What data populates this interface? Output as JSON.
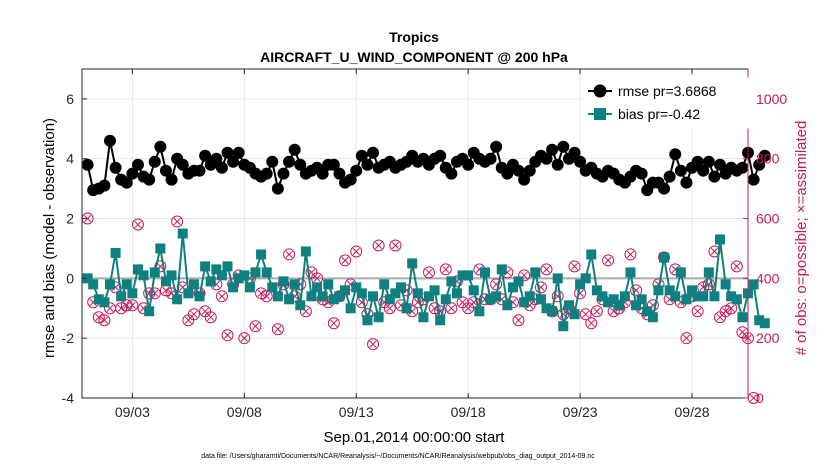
{
  "chart_data": {
    "type": "line",
    "title": "Tropics",
    "subtitle": "AIRCRAFT_U_WIND_COMPONENT @ 200 hPa",
    "xlabel": "Sep.01,2014 00:00:00 start",
    "ylabel_left": "rmse and bias (model - observation)",
    "ylabel_right": "# of obs: o=possible; ×=assimilated",
    "footnote": "data file: /Users/gharamti/Documents/NCAR/Reanalysis/~/Documents/NCAR/Reanalysis/webpub/obs_diag_output_2014-09.nc",
    "xlim": [
      0.75,
      30.5
    ],
    "ylim_left": [
      -4,
      7
    ],
    "ylim_right": [
      0,
      1100
    ],
    "x_ticks": [
      3,
      8,
      13,
      18,
      23,
      28
    ],
    "x_tick_labels": [
      "09/03",
      "09/08",
      "09/13",
      "09/18",
      "09/23",
      "09/28"
    ],
    "y_ticks_left": [
      -4,
      -2,
      0,
      2,
      4,
      6
    ],
    "y_tick_labels_left": [
      "-4",
      "-2",
      "0",
      "2",
      "4",
      "6"
    ],
    "y_ticks_right": [
      0,
      200,
      400,
      600,
      800,
      1000
    ],
    "y_tick_labels_right": [
      "0",
      "200",
      "400",
      "600",
      "800",
      "1000"
    ],
    "grid": true,
    "legend_position": "top-right",
    "zero_line": 0,
    "colors": {
      "rmse": "#000000",
      "bias": "#0f8080",
      "obs": "#c8185a",
      "grid": "#e6e6e6",
      "zero": "#aaaaaa"
    },
    "x_start": 1,
    "x_step": 0.25,
    "series": [
      {
        "name": "rmse pr=3.6868",
        "values": [
          3.8,
          2.95,
          3.0,
          3.1,
          4.6,
          3.7,
          3.3,
          3.2,
          3.5,
          3.8,
          3.4,
          3.3,
          3.9,
          4.4,
          3.6,
          3.3,
          4.0,
          3.8,
          3.5,
          3.6,
          3.6,
          4.1,
          3.8,
          4.0,
          3.7,
          4.2,
          3.9,
          4.2,
          3.8,
          3.7,
          3.5,
          3.4,
          3.5,
          3.9,
          3.0,
          3.5,
          3.9,
          4.3,
          3.8,
          3.5,
          3.6,
          3.7,
          3.5,
          3.8,
          3.8,
          3.5,
          3.2,
          3.3,
          3.6,
          4.1,
          3.8,
          4.2,
          3.7,
          3.8,
          3.9,
          3.7,
          3.8,
          3.9,
          4.1,
          3.9,
          4.0,
          3.8,
          4.0,
          4.1,
          3.7,
          3.5,
          3.9,
          4.0,
          3.8,
          4.2,
          4.0,
          3.9,
          4.0,
          4.4,
          3.7,
          3.5,
          3.8,
          3.6,
          3.3,
          3.6,
          3.9,
          4.1,
          4.0,
          4.3,
          3.8,
          4.4,
          4.0,
          4.2,
          3.9,
          3.6,
          3.7,
          3.5,
          3.4,
          3.6,
          3.5,
          3.3,
          3.2,
          3.4,
          3.6,
          3.5,
          2.95,
          3.2,
          3.2,
          3.0,
          3.4,
          4.15,
          3.6,
          3.2,
          3.7,
          3.9,
          3.6,
          3.9,
          3.4,
          3.8,
          3.5,
          3.7,
          3.6,
          3.7,
          4.2,
          3.3,
          3.8,
          4.1
        ]
      },
      {
        "name": "bias pr=-0.42",
        "values": [
          0.0,
          -0.2,
          -0.7,
          -0.8,
          -0.2,
          0.85,
          -0.6,
          -0.2,
          -0.5,
          0.3,
          0.1,
          -1.1,
          0.2,
          1.0,
          -0.1,
          0.1,
          -0.7,
          1.5,
          -0.5,
          -0.2,
          -0.6,
          0.4,
          -0.1,
          0.3,
          0.1,
          0.4,
          -0.3,
          0.0,
          0.1,
          -0.3,
          0.2,
          0.8,
          0.2,
          -0.3,
          -0.6,
          -0.1,
          -0.7,
          -0.2,
          -0.9,
          0.9,
          -0.6,
          -0.3,
          -0.6,
          -0.2,
          -0.7,
          -0.6,
          -0.4,
          -1.0,
          -0.3,
          -0.5,
          -1.4,
          -0.6,
          -1.3,
          -0.2,
          -0.7,
          -0.5,
          -0.3,
          -1.0,
          0.5,
          -0.5,
          -1.3,
          -0.6,
          -0.4,
          -1.4,
          -0.7,
          -0.1,
          -0.5,
          0.1,
          0.1,
          -0.4,
          -1.1,
          0.2,
          -0.7,
          -0.6,
          0.3,
          -0.9,
          -0.3,
          -0.1,
          -0.8,
          -0.6,
          0.2,
          -0.7,
          -1.0,
          -1.1,
          0.0,
          -1.6,
          -0.9,
          -1.2,
          -0.2,
          0.0,
          0.8,
          -0.4,
          -0.6,
          -0.8,
          -0.7,
          -0.9,
          -0.6,
          0.2,
          -0.9,
          -0.7,
          -1.1,
          -1.3,
          -0.4,
          0.7,
          -0.4,
          -0.6,
          0.2,
          -0.7,
          -0.4,
          -0.6,
          -0.6,
          0.2,
          -0.6,
          1.3,
          -0.2,
          -0.6,
          -0.7,
          -1.3,
          -0.5,
          -0.2,
          -1.4,
          -1.5
        ]
      }
    ],
    "obs_count_points": [
      [
        1.0,
        600
      ],
      [
        1.25,
        320
      ],
      [
        1.5,
        270
      ],
      [
        1.75,
        260
      ],
      [
        2.0,
        300
      ],
      [
        2.25,
        370
      ],
      [
        2.5,
        300
      ],
      [
        2.75,
        310
      ],
      [
        3.0,
        310
      ],
      [
        3.25,
        580
      ],
      [
        3.5,
        300
      ],
      [
        3.75,
        350
      ],
      [
        4.0,
        350
      ],
      [
        4.25,
        440
      ],
      [
        4.5,
        360
      ],
      [
        4.75,
        350
      ],
      [
        5.0,
        590
      ],
      [
        5.25,
        370
      ],
      [
        5.5,
        260
      ],
      [
        5.75,
        280
      ],
      [
        6.0,
        350
      ],
      [
        6.25,
        290
      ],
      [
        6.5,
        270
      ],
      [
        6.75,
        380
      ],
      [
        7.0,
        340
      ],
      [
        7.25,
        210
      ],
      [
        7.5,
        380
      ],
      [
        7.75,
        410
      ],
      [
        8.0,
        200
      ],
      [
        8.25,
        400
      ],
      [
        8.5,
        240
      ],
      [
        8.75,
        350
      ],
      [
        9.0,
        340
      ],
      [
        9.5,
        230
      ],
      [
        9.75,
        380
      ],
      [
        10.0,
        480
      ],
      [
        10.25,
        340
      ],
      [
        10.5,
        380
      ],
      [
        10.75,
        290
      ],
      [
        11.0,
        420
      ],
      [
        11.25,
        400
      ],
      [
        11.5,
        330
      ],
      [
        11.75,
        320
      ],
      [
        12.0,
        250
      ],
      [
        12.25,
        340
      ],
      [
        12.5,
        460
      ],
      [
        12.75,
        380
      ],
      [
        13.0,
        490
      ],
      [
        13.25,
        320
      ],
      [
        13.5,
        280
      ],
      [
        13.75,
        180
      ],
      [
        14.0,
        510
      ],
      [
        14.25,
        320
      ],
      [
        14.5,
        300
      ],
      [
        14.75,
        510
      ],
      [
        15.0,
        310
      ],
      [
        15.25,
        360
      ],
      [
        15.5,
        290
      ],
      [
        15.75,
        320
      ],
      [
        16.0,
        330
      ],
      [
        16.25,
        420
      ],
      [
        16.5,
        300
      ],
      [
        16.75,
        290
      ],
      [
        17.0,
        430
      ],
      [
        17.25,
        300
      ],
      [
        17.5,
        390
      ],
      [
        17.75,
        320
      ],
      [
        18.0,
        300
      ],
      [
        18.25,
        320
      ],
      [
        18.5,
        430
      ],
      [
        18.75,
        330
      ],
      [
        19.0,
        330
      ],
      [
        19.25,
        380
      ],
      [
        19.5,
        330
      ],
      [
        19.75,
        420
      ],
      [
        20.0,
        320
      ],
      [
        20.25,
        260
      ],
      [
        20.5,
        410
      ],
      [
        20.75,
        310
      ],
      [
        21.0,
        330
      ],
      [
        21.25,
        370
      ],
      [
        21.5,
        430
      ],
      [
        21.75,
        290
      ],
      [
        22.0,
        340
      ],
      [
        22.25,
        280
      ],
      [
        22.5,
        300
      ],
      [
        22.75,
        440
      ],
      [
        23.0,
        350
      ],
      [
        23.25,
        280
      ],
      [
        23.5,
        250
      ],
      [
        23.75,
        290
      ],
      [
        24.0,
        330
      ],
      [
        24.25,
        460
      ],
      [
        24.5,
        290
      ],
      [
        24.75,
        300
      ],
      [
        25.0,
        320
      ],
      [
        25.25,
        480
      ],
      [
        25.5,
        360
      ],
      [
        25.75,
        300
      ],
      [
        26.0,
        280
      ],
      [
        26.25,
        310
      ],
      [
        26.5,
        380
      ],
      [
        26.75,
        470
      ],
      [
        27.0,
        330
      ],
      [
        27.25,
        430
      ],
      [
        27.5,
        320
      ],
      [
        27.75,
        200
      ],
      [
        28.0,
        340
      ],
      [
        28.25,
        290
      ],
      [
        28.5,
        370
      ],
      [
        28.75,
        380
      ],
      [
        29.0,
        490
      ],
      [
        29.25,
        270
      ],
      [
        29.5,
        290
      ],
      [
        29.75,
        300
      ],
      [
        30.0,
        440
      ],
      [
        30.25,
        220
      ],
      [
        30.5,
        200
      ],
      [
        30.75,
        0
      ]
    ]
  }
}
